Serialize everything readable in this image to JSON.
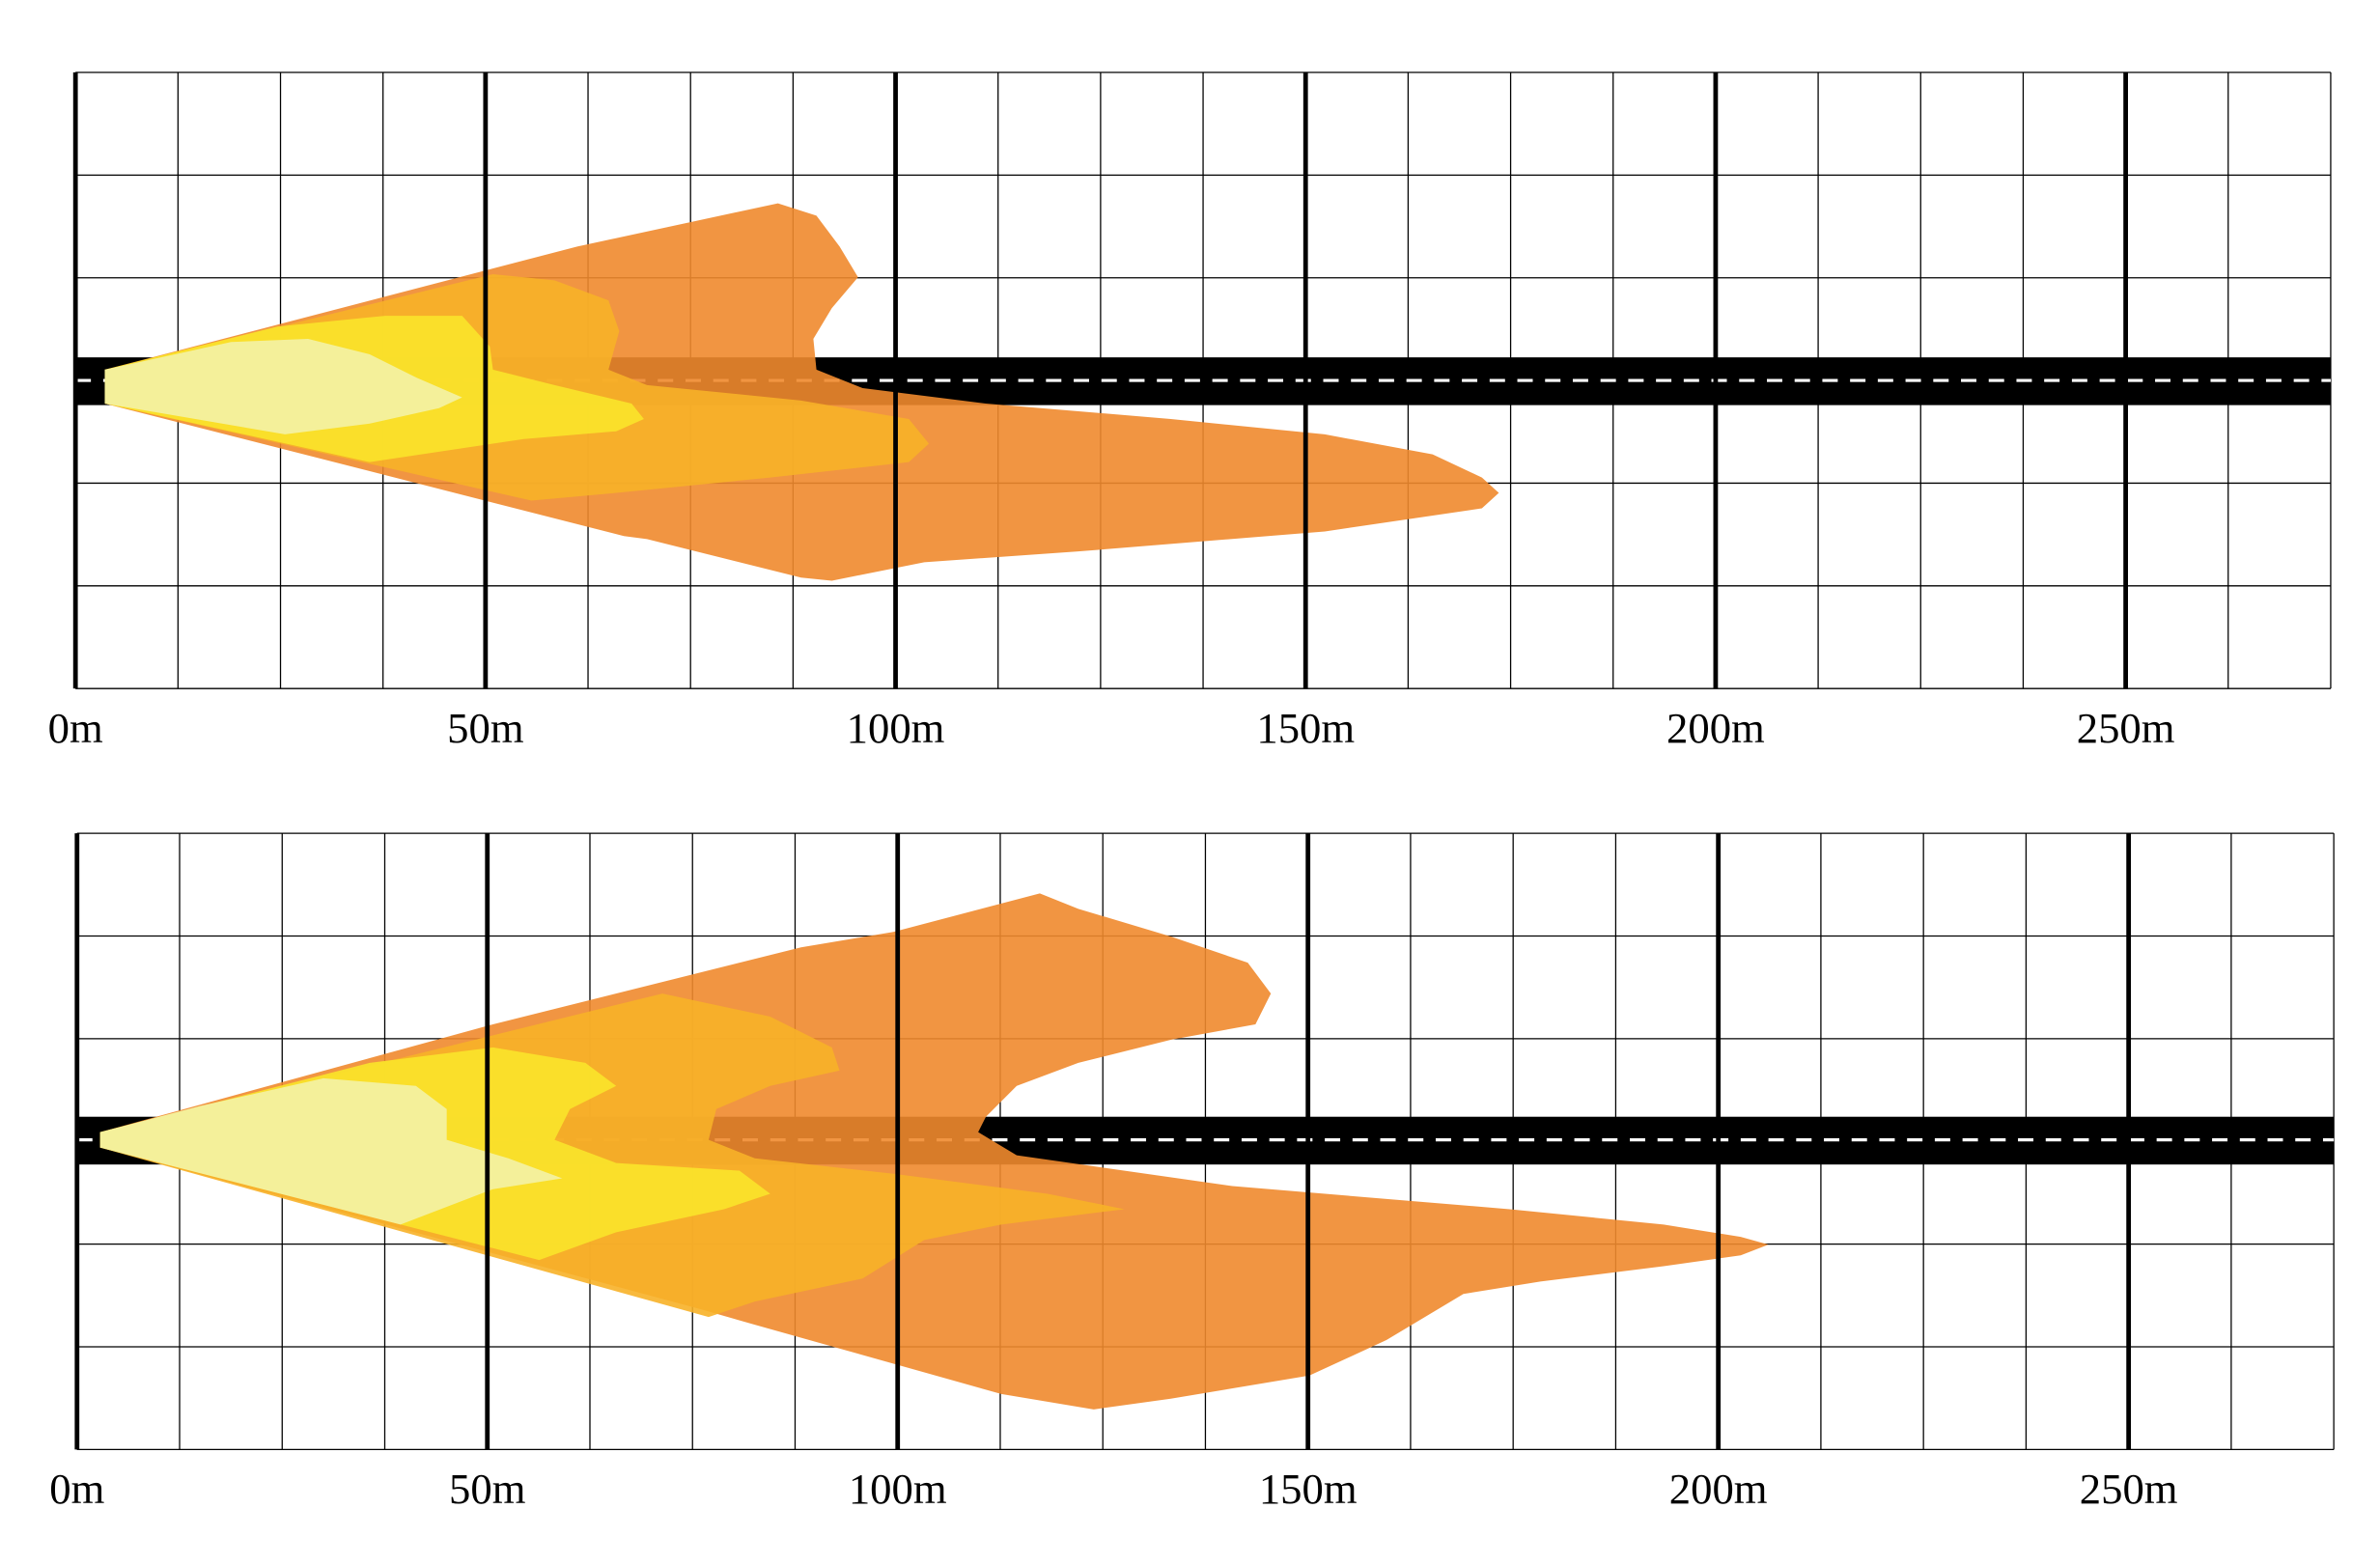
{
  "chart_data": [
    {
      "type": "area",
      "xlim": [
        0,
        275
      ],
      "xticks": [
        {
          "value": 0,
          "label": "0m"
        },
        {
          "value": 50,
          "label": "50m"
        },
        {
          "value": 100,
          "label": "100m"
        },
        {
          "value": 150,
          "label": "150m"
        },
        {
          "value": 200,
          "label": "200m"
        },
        {
          "value": 250,
          "label": "250m"
        }
      ]
    },
    {
      "type": "area",
      "xlim": [
        0,
        275
      ],
      "xticks": [
        {
          "value": 0,
          "label": "0m"
        },
        {
          "value": 50,
          "label": "50m"
        },
        {
          "value": 100,
          "label": "100m"
        },
        {
          "value": 150,
          "label": "150m"
        },
        {
          "value": 200,
          "label": "200m"
        },
        {
          "value": 250,
          "label": "250m"
        }
      ]
    }
  ]
}
